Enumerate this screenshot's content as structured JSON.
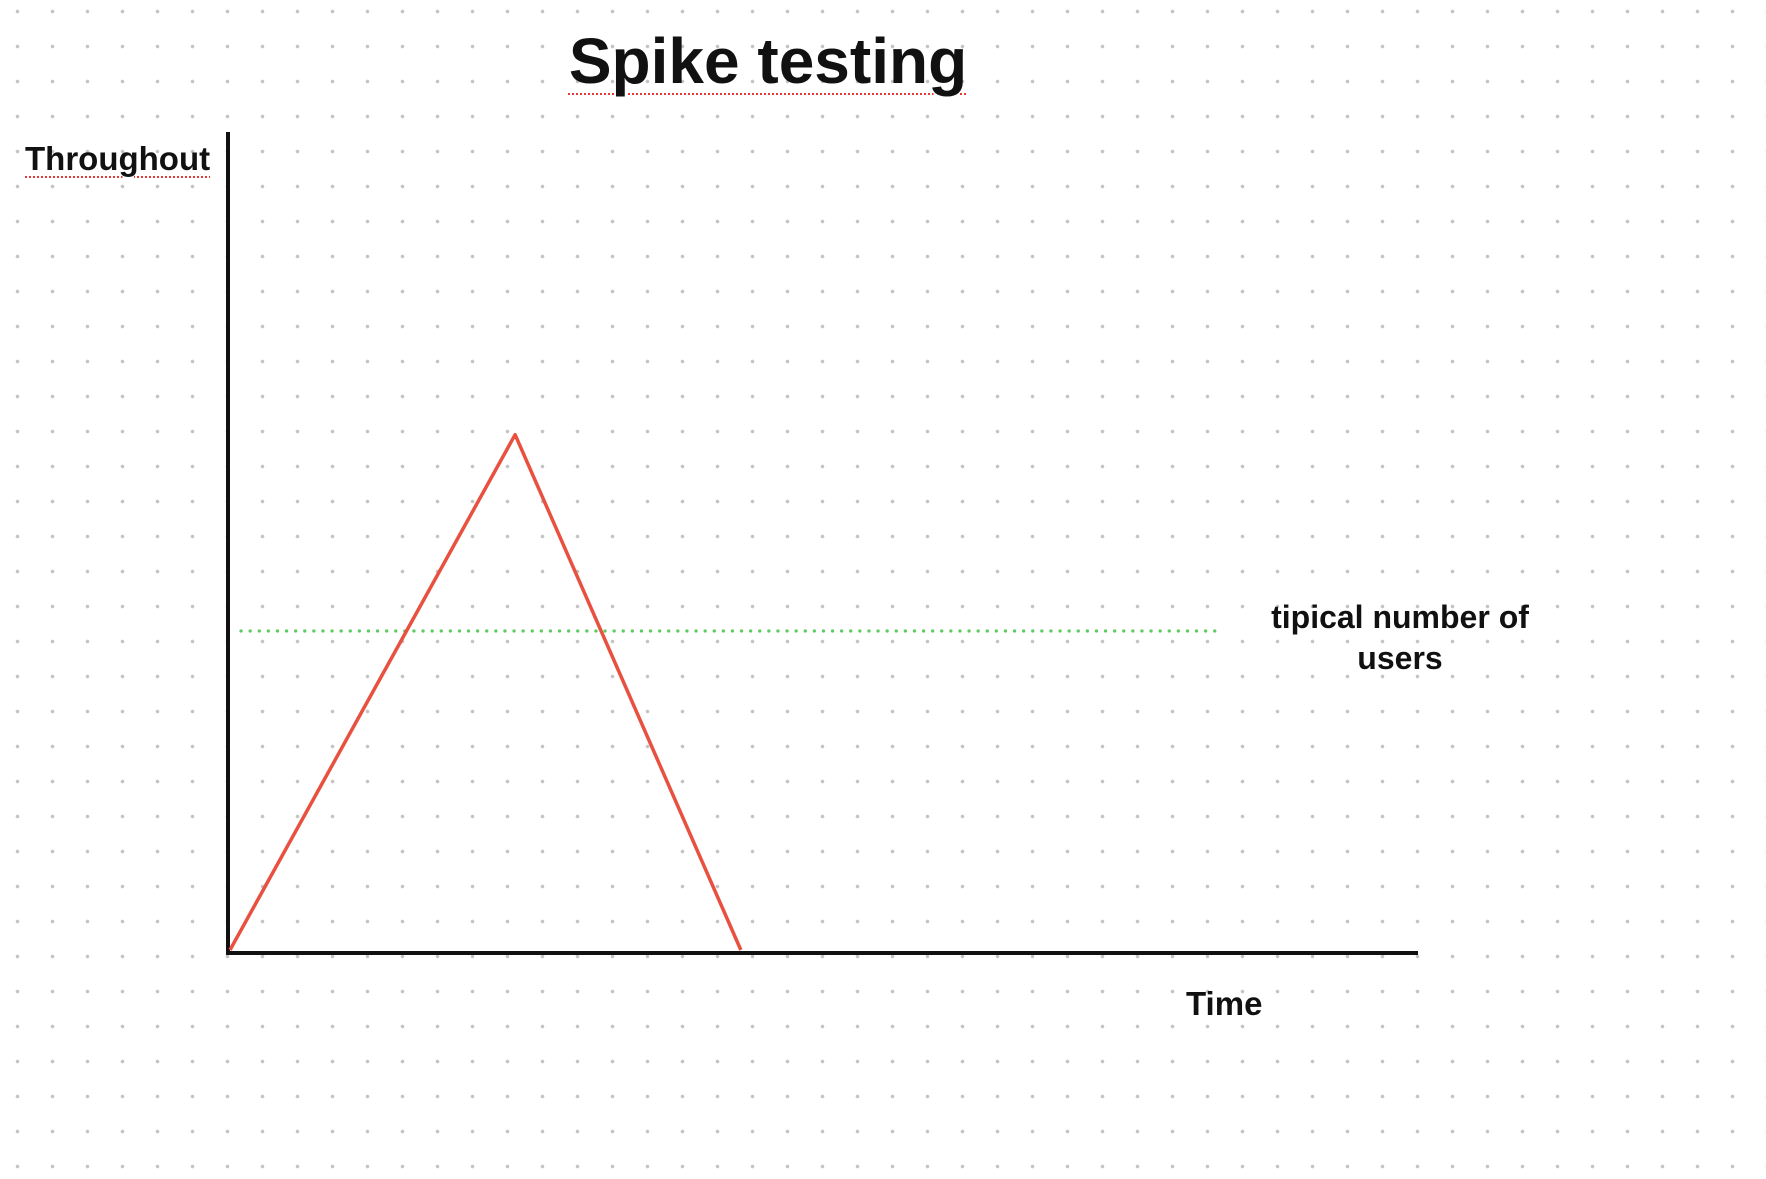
{
  "title": "Spike testing",
  "chart_data": {
    "type": "line",
    "title": "Spike testing",
    "xlabel": "Time",
    "ylabel": "Throughout",
    "series": [
      {
        "color": "#e8503f",
        "x": [
          0,
          0.24,
          0.43
        ],
        "y": [
          0,
          0.63,
          0
        ]
      }
    ],
    "reference_line": {
      "label": "tipical number of users",
      "y": 0.39,
      "style": "dotted",
      "color": "#5ccb5f"
    },
    "grid": false,
    "background": "dot grid"
  }
}
